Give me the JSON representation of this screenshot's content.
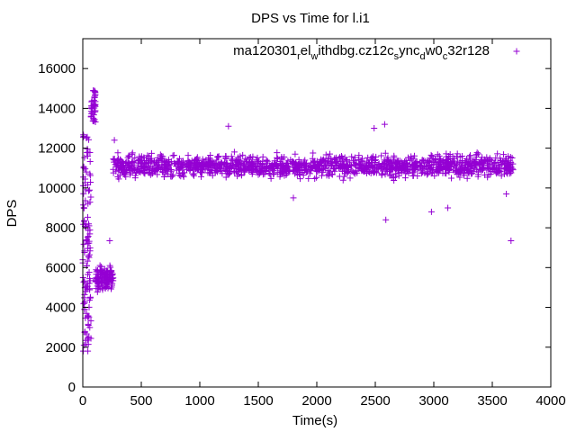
{
  "chart_data": {
    "type": "scatter",
    "title": "DPS vs Time for l.i1",
    "xlabel": "Time(s)",
    "ylabel": "DPS",
    "xlim": [
      0,
      4000
    ],
    "ylim": [
      0,
      17500
    ],
    "x_ticks": [
      0,
      500,
      1000,
      1500,
      2000,
      2500,
      3000,
      3500,
      4000
    ],
    "y_ticks": [
      0,
      2000,
      4000,
      6000,
      8000,
      10000,
      12000,
      14000,
      16000
    ],
    "grid": false,
    "legend_position": "top-right",
    "marker": "plus",
    "color": "#9400d3",
    "series": [
      {
        "name": "ma120301_rel_withdbg.cz12c_sync_dw0_c32r128",
        "segments": [
          {
            "x_range": [
              0,
              70
            ],
            "y_range": [
              1800,
              12700
            ],
            "description": "startup ramp, widely scattered"
          },
          {
            "x_range": [
              70,
              110
            ],
            "y_range": [
              13300,
              14900
            ]
          },
          {
            "x_range": [
              110,
              260
            ],
            "y_range": [
              4700,
              6300
            ]
          },
          {
            "x_range": [
              260,
              3680
            ],
            "y_range": [
              10400,
              11800
            ]
          }
        ],
        "outliers": [
          {
            "x": 90,
            "y": 14900
          },
          {
            "x": 230,
            "y": 7350
          },
          {
            "x": 270,
            "y": 12400
          },
          {
            "x": 1245,
            "y": 13100
          },
          {
            "x": 1800,
            "y": 9500
          },
          {
            "x": 2490,
            "y": 13000
          },
          {
            "x": 2580,
            "y": 13200
          },
          {
            "x": 2590,
            "y": 8400
          },
          {
            "x": 2980,
            "y": 8800
          },
          {
            "x": 3120,
            "y": 9000
          },
          {
            "x": 3660,
            "y": 7350
          },
          {
            "x": 3620,
            "y": 9700
          }
        ]
      }
    ]
  }
}
